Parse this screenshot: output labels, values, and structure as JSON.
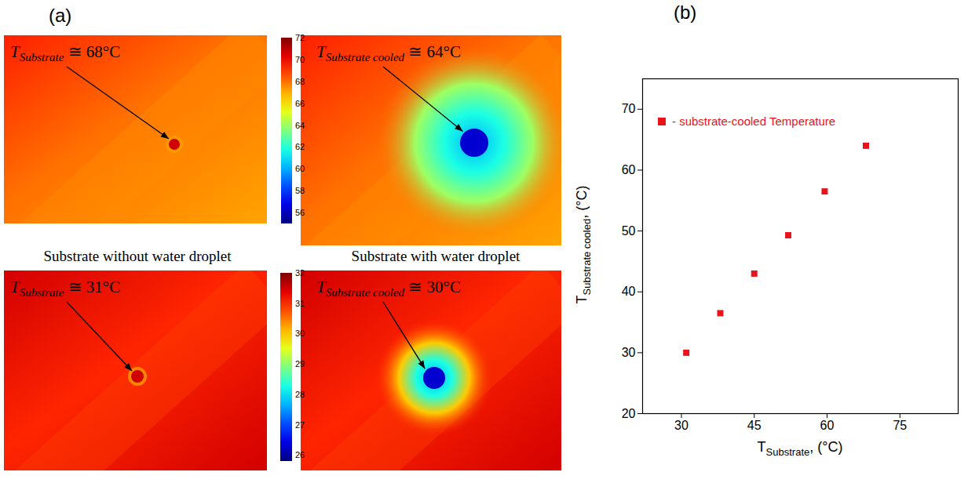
{
  "panel_a": {
    "label": "(a)",
    "rows": [
      {
        "without": {
          "symbol": "T",
          "subscript": "Substrate",
          "relation": "≅",
          "value": 68,
          "unit": "°C"
        },
        "with": {
          "symbol": "T",
          "subscript": "Substrate cooled",
          "relation": "≅",
          "value": 64,
          "unit": "°C"
        },
        "colorbar": {
          "range": [
            55,
            72
          ],
          "ticks": [
            56,
            58,
            60,
            62,
            64,
            66,
            68,
            70,
            72
          ]
        }
      },
      {
        "without": {
          "symbol": "T",
          "subscript": "Substrate",
          "relation": "≅",
          "value": 31,
          "unit": "°C"
        },
        "with": {
          "symbol": "T",
          "subscript": "Substrate cooled",
          "relation": "≅",
          "value": 30,
          "unit": "°C"
        },
        "colorbar": {
          "range": [
            25.8,
            32
          ],
          "ticks": [
            26,
            27,
            28,
            29,
            30,
            31,
            32
          ]
        }
      }
    ],
    "captions": [
      "Substrate without water droplet",
      "Substrate with water droplet"
    ]
  },
  "chart_data": {
    "type": "scatter",
    "panel_label": "(b)",
    "xlabel": {
      "symbol": "T",
      "subscript": "Substrate",
      "suffix": ", (°C)"
    },
    "ylabel": {
      "symbol": "T",
      "subscript": "Substrate cooled",
      "suffix": ", (°C)"
    },
    "x": [
      31,
      38,
      45,
      52,
      59.5,
      68
    ],
    "series": [
      {
        "name": "- substrate-cooled Temperature",
        "color": "#e8141c",
        "marker": "square",
        "values": [
          30,
          36.5,
          43,
          49.3,
          56.5,
          64
        ]
      }
    ],
    "xlim": [
      22,
      87
    ],
    "xticks": [
      30,
      45,
      60,
      75
    ],
    "ylim": [
      20,
      75
    ],
    "yticks": [
      20,
      30,
      40,
      50,
      60,
      70
    ],
    "legend": "top-left",
    "grid": false
  }
}
